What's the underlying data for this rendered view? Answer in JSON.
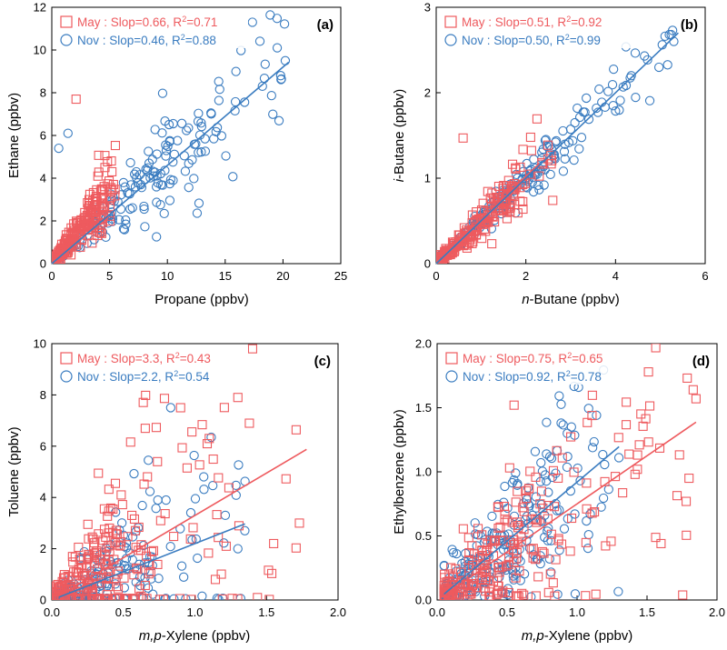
{
  "colors": {
    "may": "#ee5a5e",
    "nov": "#3a7cc0",
    "axis": "#000000"
  },
  "chart_data": [
    {
      "type": "scatter",
      "panel_label": "(a)",
      "xlabel": "Propane (ppbv)",
      "xlabel_parts": [],
      "ylabel": "Ethane (ppbv)",
      "ylabel_parts": [],
      "xlim": [
        0,
        25
      ],
      "ylim": [
        0,
        12
      ],
      "xticks": [
        0,
        5,
        10,
        15,
        20,
        25
      ],
      "xtick_labels": [
        "0",
        "5",
        "10",
        "15",
        "20",
        "25"
      ],
      "yticks": [
        0,
        2,
        4,
        6,
        8,
        10,
        12
      ],
      "ytick_labels": [
        "0",
        "2",
        "4",
        "6",
        "8",
        "10",
        "12"
      ],
      "legend_placement": "top-left",
      "series": [
        {
          "name": "May",
          "marker": "square",
          "color": "#ee5a5e",
          "legend_text": "May : Slop=0.66, R2=0.71",
          "legend_prefix": "May : Slop=0.66, R",
          "legend_sup": "2",
          "legend_suffix": "=0.71",
          "slope": 0.66,
          "r2": 0.71,
          "line_x": [
            0,
            5
          ],
          "gen_x": [
            0.1,
            5.5
          ],
          "spread": 0.12,
          "n": 220,
          "seed": 11,
          "mean_x": 3,
          "points": [
            [
              2.1,
              7.7
            ],
            [
              5.2,
              4.3
            ],
            [
              4.6,
              4.5
            ]
          ]
        },
        {
          "name": "Nov",
          "marker": "circle",
          "color": "#3a7cc0",
          "legend_text": "Nov : Slop=0.46, R2=0.88",
          "legend_prefix": "Nov : Slop=0.46, R",
          "legend_sup": "2",
          "legend_suffix": "=0.88",
          "slope": 0.46,
          "r2": 0.88,
          "line_x": [
            0,
            20.5
          ],
          "gen_x": [
            0.1,
            20.5
          ],
          "spread": 0.11,
          "n": 200,
          "seed": 23,
          "mean_x": 8,
          "points": [
            [
              0.6,
              5.4
            ],
            [
              1.4,
              6.1
            ],
            [
              20.2,
              9.5
            ],
            [
              19.8,
              8.8
            ]
          ]
        }
      ]
    },
    {
      "type": "scatter",
      "panel_label": "(b)",
      "xlabel": "n-Butane (ppbv)",
      "xlabel_parts": [
        {
          "text": "n",
          "italic": true
        },
        {
          "text": "-Butane (ppbv)",
          "italic": false
        }
      ],
      "ylabel": "i-Butane (ppbv)",
      "ylabel_parts": [
        {
          "text": "i",
          "italic": true
        },
        {
          "text": "-Butane (ppbv)",
          "italic": false
        }
      ],
      "xlim": [
        0,
        6
      ],
      "ylim": [
        0,
        3
      ],
      "xticks": [
        0,
        2,
        4,
        6
      ],
      "xtick_labels": [
        "0",
        "2",
        "4",
        "6"
      ],
      "yticks": [
        0,
        1,
        2,
        3
      ],
      "ytick_labels": [
        "0",
        "1",
        "2",
        "3"
      ],
      "legend_placement": "top-left",
      "series": [
        {
          "name": "May",
          "marker": "square",
          "color": "#ee5a5e",
          "legend_text": "May : Slop=0.51, R2=0.92",
          "legend_prefix": "May : Slop=0.51, R",
          "legend_sup": "2",
          "legend_suffix": "=0.92",
          "slope": 0.51,
          "r2": 0.92,
          "line_x": [
            0,
            2.3
          ],
          "gen_x": [
            0.05,
            2.6
          ],
          "spread": 0.08,
          "n": 200,
          "seed": 37,
          "mean_x": 1,
          "points": [
            [
              0.6,
              1.47
            ],
            [
              2.6,
              0.74
            ]
          ]
        },
        {
          "name": "Nov",
          "marker": "circle",
          "color": "#3a7cc0",
          "legend_text": "Nov : Slop=0.50, R2=0.99",
          "legend_prefix": "Nov : Slop=0.50, R",
          "legend_sup": "2",
          "legend_suffix": "=0.99",
          "slope": 0.5,
          "r2": 0.99,
          "line_x": [
            0,
            5.4
          ],
          "gen_x": [
            0.1,
            5.4
          ],
          "spread": 0.05,
          "n": 210,
          "seed": 41,
          "mean_x": 2,
          "points": [
            [
              5.3,
              2.6
            ],
            [
              5.2,
              2.68
            ]
          ]
        }
      ]
    },
    {
      "type": "scatter",
      "panel_label": "(c)",
      "xlabel": "m,p-Xylene (ppbv)",
      "xlabel_parts": [
        {
          "text": "m,p",
          "italic": true
        },
        {
          "text": "-Xylene (ppbv)",
          "italic": false
        }
      ],
      "ylabel": "Toluene (ppbv)",
      "ylabel_parts": [],
      "xlim": [
        0,
        2
      ],
      "ylim": [
        0,
        10
      ],
      "xticks": [
        0,
        0.5,
        1,
        1.5,
        2
      ],
      "xtick_labels": [
        "0.0",
        "0.5",
        "1.0",
        "1.5",
        "2.0"
      ],
      "yticks": [
        0,
        2,
        4,
        6,
        8,
        10
      ],
      "ytick_labels": [
        "0",
        "2",
        "4",
        "6",
        "8",
        "10"
      ],
      "legend_placement": "top-left",
      "series": [
        {
          "name": "May",
          "marker": "square",
          "color": "#ee5a5e",
          "legend_text": "May : Slop=3.3, R2=0.43",
          "legend_prefix": "May : Slop=3.3, R",
          "legend_sup": "2",
          "legend_suffix": "=0.43",
          "slope": 3.3,
          "r2": 0.43,
          "line_x": [
            0.05,
            1.78
          ],
          "gen_x": [
            0.03,
            1.75
          ],
          "spread": 0.5,
          "n": 260,
          "seed": 53,
          "mean_x": 0.35,
          "points": [
            [
              1.3,
              7.9
            ],
            [
              0.9,
              7.5
            ],
            [
              1.73,
              3.0
            ],
            [
              1.55,
              2.2
            ],
            [
              1.1,
              6.3
            ]
          ]
        },
        {
          "name": "Nov",
          "marker": "circle",
          "color": "#3a7cc0",
          "legend_text": "Nov : Slop=2.2, R2=0.54",
          "legend_prefix": "Nov : Slop=2.2, R",
          "legend_sup": "2",
          "legend_suffix": "=0.54",
          "slope": 2.2,
          "r2": 0.54,
          "line_x": [
            0.05,
            1.35
          ],
          "gen_x": [
            0.03,
            1.35
          ],
          "spread": 0.45,
          "n": 220,
          "seed": 67,
          "mean_x": 0.35,
          "points": [
            [
              1.05,
              0.15
            ],
            [
              1.3,
              2.0
            ]
          ]
        }
      ]
    },
    {
      "type": "scatter",
      "panel_label": "(d)",
      "xlabel": "m,p-Xylene (ppbv)",
      "xlabel_parts": [
        {
          "text": "m,p",
          "italic": true
        },
        {
          "text": "-Xylene (ppbv)",
          "italic": false
        }
      ],
      "ylabel": "Ethylbenzene (ppbv)",
      "ylabel_parts": [],
      "xlim": [
        0,
        2
      ],
      "ylim": [
        0,
        2
      ],
      "xticks": [
        0,
        0.5,
        1,
        1.5,
        2
      ],
      "xtick_labels": [
        "0.0",
        "0.5",
        "1.0",
        "1.5",
        "2.0"
      ],
      "yticks": [
        0,
        0.5,
        1,
        1.5,
        2
      ],
      "ytick_labels": [
        "0.0",
        "0.5",
        "1.0",
        "1.5",
        "2.0"
      ],
      "legend_placement": "top-left",
      "series": [
        {
          "name": "May",
          "marker": "square",
          "color": "#ee5a5e",
          "legend_text": "May : Slop=0.75, R2=0.65",
          "legend_prefix": "May : Slop=0.75, R",
          "legend_sup": "2",
          "legend_suffix": "=0.65",
          "slope": 0.75,
          "r2": 0.65,
          "line_x": [
            0.05,
            1.85
          ],
          "gen_x": [
            0.05,
            1.85
          ],
          "spread": 0.28,
          "n": 240,
          "seed": 79,
          "mean_x": 0.45,
          "points": [
            [
              1.83,
              1.64
            ],
            [
              1.85,
              1.57
            ],
            [
              1.6,
              0.44
            ],
            [
              1.8,
              0.95
            ],
            [
              0.55,
              1.52
            ]
          ]
        },
        {
          "name": "Nov",
          "marker": "circle",
          "color": "#3a7cc0",
          "legend_text": "Nov : Slop=0.92, R2=0.78",
          "legend_prefix": "Nov : Slop=0.92, R",
          "legend_sup": "2",
          "legend_suffix": "=0.78",
          "slope": 0.92,
          "r2": 0.78,
          "line_x": [
            0.05,
            1.3
          ],
          "gen_x": [
            0.05,
            1.3
          ],
          "spread": 0.22,
          "n": 230,
          "seed": 97,
          "mean_x": 0.5,
          "points": [
            [
              0.96,
              1.35
            ],
            [
              0.93,
              1.3
            ]
          ]
        }
      ]
    }
  ]
}
